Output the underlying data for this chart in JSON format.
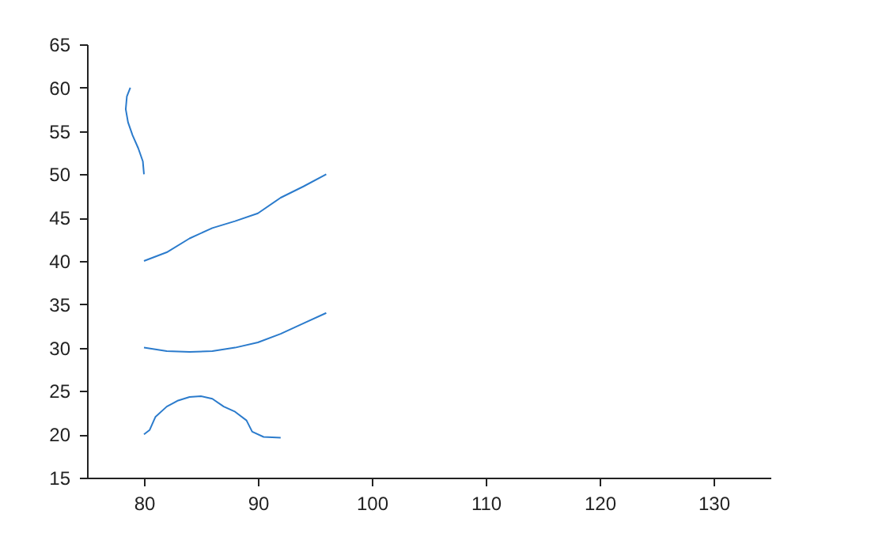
{
  "chart_data": {
    "type": "line",
    "xlim": [
      75,
      135
    ],
    "ylim": [
      15,
      65
    ],
    "xticks": [
      80,
      90,
      100,
      110,
      120,
      130
    ],
    "yticks": [
      15,
      20,
      25,
      30,
      35,
      40,
      45,
      50,
      55,
      60,
      65
    ],
    "grid": false,
    "series": [
      {
        "color": "#2b7bcc",
        "x": [
          80,
          79.9,
          79.5,
          79,
          78.6,
          78.4,
          78.5,
          78.8
        ],
        "values": [
          50,
          51.5,
          53,
          54.5,
          56,
          57.5,
          59,
          60
        ]
      },
      {
        "color": "#2b7bcc",
        "x": [
          80,
          82,
          84,
          86,
          88,
          90,
          92,
          94,
          96
        ],
        "values": [
          40,
          41,
          42.6,
          43.8,
          44.6,
          45.5,
          47.3,
          48.6,
          50
        ]
      },
      {
        "color": "#2b7bcc",
        "x": [
          80,
          82,
          84,
          86,
          88,
          90,
          92,
          94,
          96
        ],
        "values": [
          30,
          29.6,
          29.5,
          29.6,
          30,
          30.6,
          31.6,
          32.8,
          34
        ]
      },
      {
        "color": "#2b7bcc",
        "x": [
          80,
          80.5,
          81,
          82,
          83,
          84,
          85,
          86,
          87,
          88,
          89,
          89.5,
          90.5,
          92
        ],
        "values": [
          20,
          20.5,
          22,
          23.2,
          23.9,
          24.3,
          24.4,
          24.1,
          23.2,
          22.6,
          21.6,
          20.3,
          19.7,
          19.6
        ]
      }
    ]
  }
}
